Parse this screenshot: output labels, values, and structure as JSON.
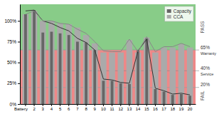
{
  "chart_data": {
    "type": "bar",
    "categories": [
      "Battery",
      "2",
      "3",
      "4",
      "5",
      "6",
      "7",
      "8",
      "9",
      "10",
      "11",
      "12",
      "13",
      "14",
      "15",
      "16",
      "17",
      "18",
      "19",
      "20"
    ],
    "series": [
      {
        "name": "Capacity",
        "type": "bar",
        "color": "#666666",
        "values": [
          108,
          113,
          86,
          87,
          85,
          83,
          75,
          74,
          65,
          28,
          28,
          25,
          24,
          65,
          79,
          18,
          15,
          11,
          12,
          10
        ]
      },
      {
        "name": "CCA",
        "type": "bar",
        "color": "#aaaaaa",
        "values": [
          108,
          112,
          100,
          100,
          97,
          96,
          92,
          83,
          73,
          62,
          62,
          62,
          77,
          62,
          80,
          62,
          68,
          68,
          72,
          68
        ]
      },
      {
        "type": "line",
        "color": "#333333",
        "values": [
          112,
          113,
          100,
          97,
          92,
          88,
          79,
          74,
          65,
          30,
          29,
          26,
          25,
          64,
          78,
          19,
          16,
          12,
          13,
          11
        ]
      },
      {
        "type": "line",
        "color": "#888888",
        "values": [
          108,
          112,
          100,
          100,
          97,
          96,
          90,
          85,
          75,
          64,
          63,
          63,
          78,
          63,
          81,
          63,
          69,
          69,
          73,
          69
        ]
      }
    ],
    "ylim": [
      0,
      120
    ],
    "yticks": [
      {
        "value": 0,
        "label": "0%"
      },
      {
        "value": 25,
        "label": "25%"
      },
      {
        "value": 50,
        "label": "50%"
      },
      {
        "value": 75,
        "label": "75%"
      },
      {
        "value": 100,
        "label": "100%"
      }
    ],
    "zones": [
      {
        "from": 0,
        "to": 20,
        "color": "#ee8888",
        "label": "FAIL"
      },
      {
        "from": 20,
        "to": 65,
        "color": "#ee8888"
      },
      {
        "from": 65,
        "to": 120,
        "color": "#88cc88",
        "label": "PASS"
      }
    ],
    "reference_lines": [
      {
        "value": 65,
        "label": "65%",
        "text": "Warranty"
      },
      {
        "value": 40,
        "label": "40%",
        "text": "Service"
      },
      {
        "value": 20,
        "label": "20%"
      }
    ],
    "legend": "upper right",
    "grid": false
  }
}
